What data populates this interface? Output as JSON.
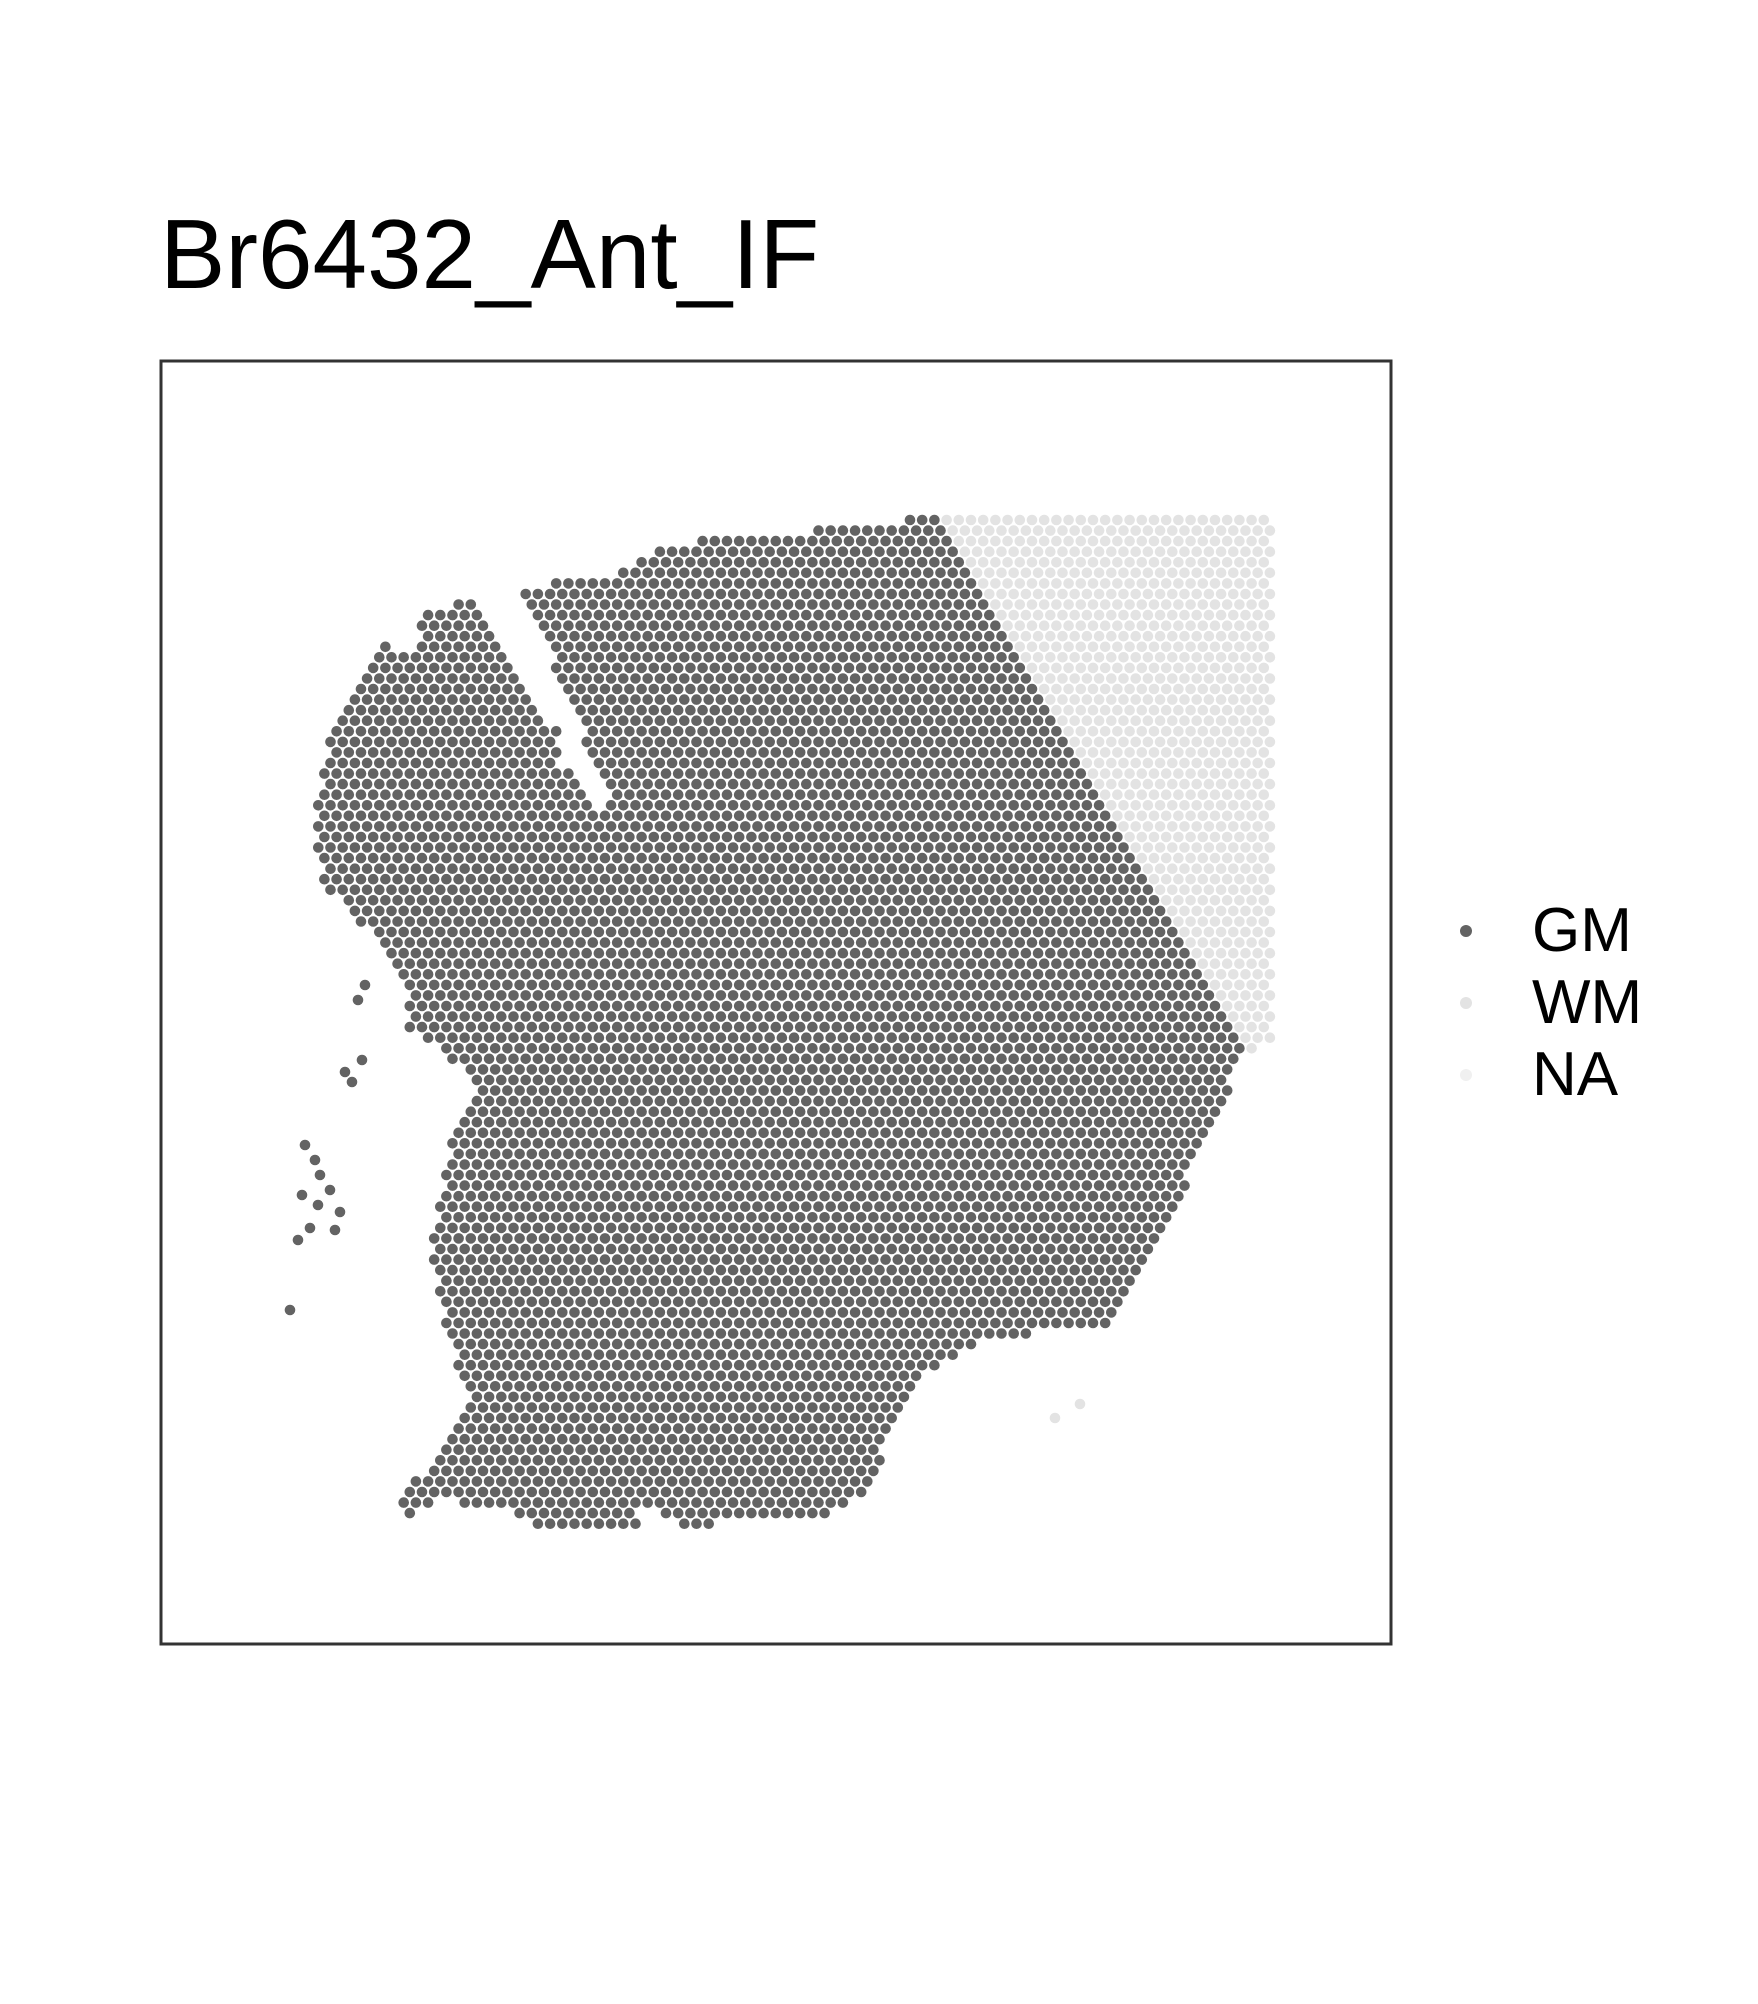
{
  "chart_data": {
    "type": "scatter",
    "title": "Br6432_Ant_IF",
    "xlabel": "",
    "ylabel": "",
    "grid": false,
    "legend_position": "right",
    "axis_ticks": false,
    "series": [
      {
        "name": "GM",
        "color": "#636363"
      },
      {
        "name": "WM",
        "color": "#e3e3e3"
      },
      {
        "name": "NA",
        "color": "#f0f0f0"
      }
    ],
    "description_values": {
      "spot_grid": "hexagonal spot array",
      "regions": [
        "GM",
        "WM",
        "NA"
      ]
    }
  }
}
